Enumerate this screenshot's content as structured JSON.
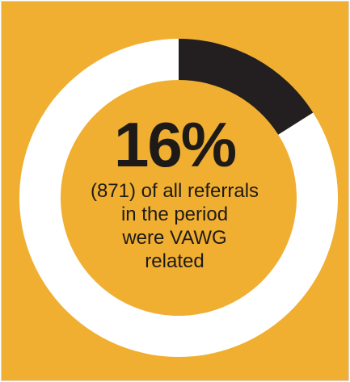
{
  "colors": {
    "background": "#F0AF31",
    "ring_remainder": "#FFFFFF",
    "ring_highlight": "#231F20",
    "text": "#1E1A17"
  },
  "chart_data": {
    "type": "pie",
    "style": "donut",
    "title": "",
    "slices": [
      {
        "value": 16,
        "color": "#231F20"
      },
      {
        "value": 84,
        "color": "#FFFFFF"
      }
    ],
    "center_value": "16%",
    "center_caption": [
      "(871) of all referrals",
      "in the period",
      "were VAWG",
      "related"
    ]
  }
}
